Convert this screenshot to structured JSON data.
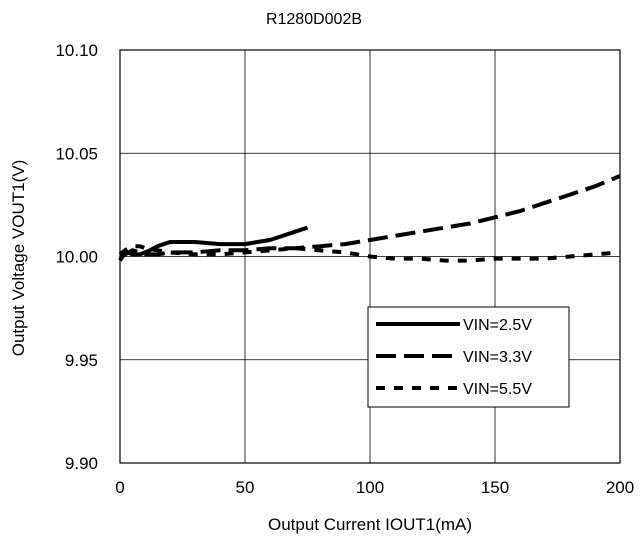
{
  "chart_data": {
    "type": "line",
    "title": "R1280D002B",
    "xlabel": "Output Current IOUT1(mA)",
    "ylabel": "Output Voltage VOUT1(V)",
    "xlim": [
      0,
      200
    ],
    "ylim": [
      9.9,
      10.1
    ],
    "x_ticks": [
      "0",
      "50",
      "100",
      "150",
      "200"
    ],
    "y_ticks": [
      "10.10",
      "10.05",
      "10.00",
      "9.95",
      "9.90"
    ],
    "grid": true,
    "legend_position": "bottom-right",
    "series": [
      {
        "name": "VIN=2.5V",
        "style": "solid",
        "color": "#000000",
        "x": [
          0,
          1,
          3,
          5,
          8,
          12,
          15,
          20,
          25,
          30,
          40,
          50,
          55,
          60,
          65,
          70,
          75
        ],
        "y": [
          9.998,
          10.0,
          10.002,
          10.001,
          10.001,
          10.003,
          10.005,
          10.007,
          10.007,
          10.007,
          10.006,
          10.006,
          10.007,
          10.008,
          10.01,
          10.012,
          10.014
        ]
      },
      {
        "name": "VIN=3.3V",
        "style": "dashed",
        "color": "#000000",
        "x": [
          0,
          2,
          5,
          8,
          10,
          15,
          20,
          30,
          40,
          50,
          60,
          70,
          80,
          90,
          100,
          120,
          140,
          150,
          160,
          170,
          180,
          190,
          200
        ],
        "y": [
          9.999,
          10.001,
          10.003,
          10.002,
          10.001,
          10.001,
          10.002,
          10.002,
          10.003,
          10.003,
          10.004,
          10.004,
          10.005,
          10.006,
          10.008,
          10.012,
          10.016,
          10.019,
          10.022,
          10.026,
          10.03,
          10.034,
          10.039
        ]
      },
      {
        "name": "VIN=5.5V",
        "style": "dotted",
        "color": "#000000",
        "x": [
          0,
          2,
          5,
          8,
          10,
          15,
          20,
          30,
          40,
          50,
          60,
          70,
          80,
          90,
          100,
          110,
          120,
          130,
          140,
          150,
          160,
          170,
          180,
          190,
          200
        ],
        "y": [
          10.001,
          10.003,
          10.005,
          10.005,
          10.004,
          10.003,
          10.002,
          10.001,
          10.001,
          10.002,
          10.003,
          10.004,
          10.003,
          10.002,
          10.0,
          9.999,
          9.999,
          9.998,
          9.998,
          9.999,
          9.999,
          9.999,
          10.0,
          10.001,
          10.002
        ]
      }
    ]
  }
}
